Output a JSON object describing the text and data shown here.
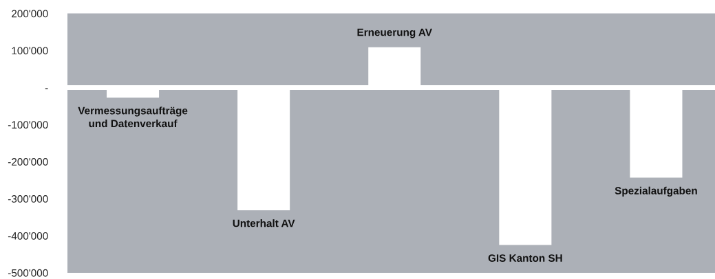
{
  "chart_data": {
    "type": "bar",
    "categories": [
      "Vermessungsaufträge\nund Datenverkauf",
      "Unterhalt AV",
      "Erneuerung AV",
      "GIS Kanton SH",
      "Spezialaufgaben"
    ],
    "values": [
      -27000,
      -331000,
      109000,
      -425000,
      -243000
    ],
    "color": "#ffffff",
    "ylim": [
      -500000,
      200000
    ],
    "yticks": [
      {
        "value": 200000,
        "label": "200'000"
      },
      {
        "value": 100000,
        "label": "100'000"
      },
      {
        "value": 0,
        "label": "-"
      },
      {
        "value": -100000,
        "label": "-100'000"
      },
      {
        "value": -200000,
        "label": "-200'000"
      },
      {
        "value": -300000,
        "label": "-300'000"
      },
      {
        "value": -400000,
        "label": "-400'000"
      },
      {
        "value": -500000,
        "label": "-500'000"
      }
    ],
    "tick_labels": "y",
    "ref_lines": [
      {
        "axis": "y",
        "value": 0,
        "color": "#ffffff"
      }
    ],
    "grid": false
  }
}
